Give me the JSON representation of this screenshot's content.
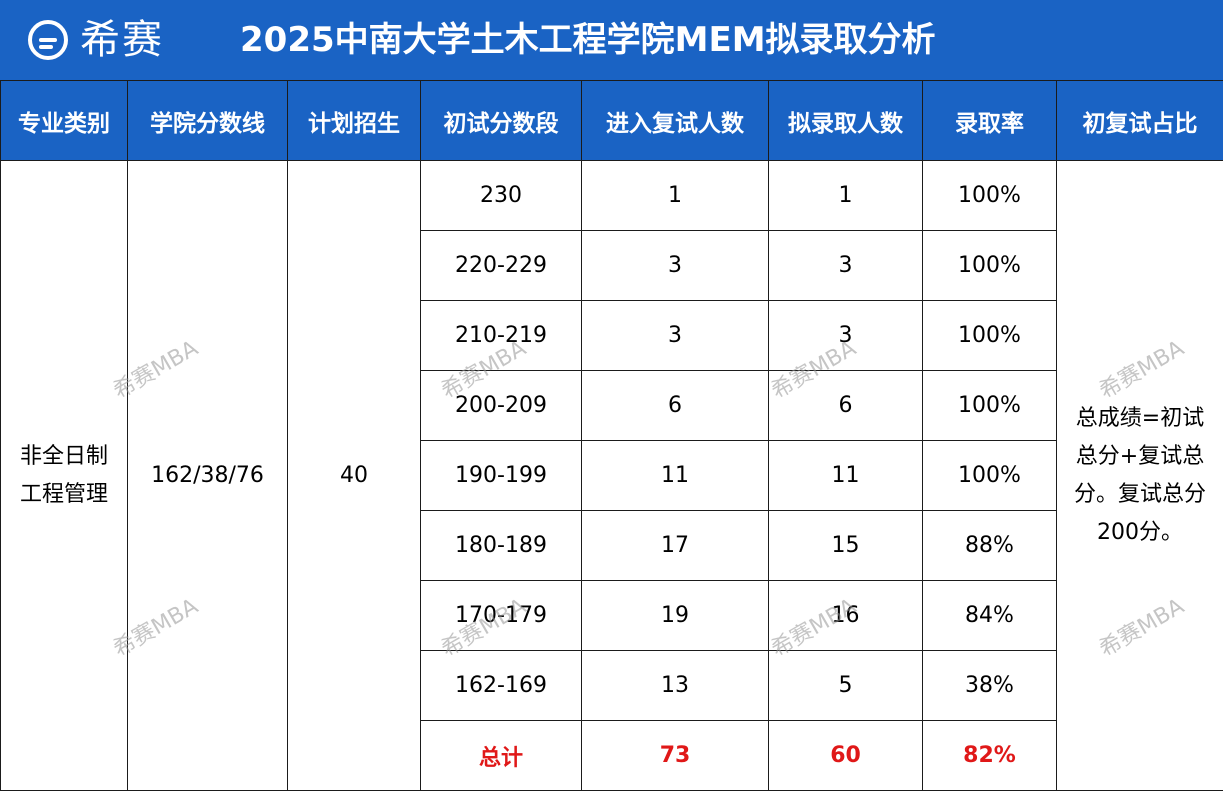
{
  "header": {
    "logo_text": "希赛",
    "title": "2025中南大学土木工程学院MEM拟录取分析"
  },
  "table": {
    "columns": [
      "专业类别",
      "学院分数线",
      "计划招生",
      "初试分数段",
      "进入复试人数",
      "拟录取人数",
      "录取率",
      "初复试占比"
    ],
    "major_line1": "非全日制",
    "major_line2": "工程管理",
    "score_line": "162/38/76",
    "plan": "40",
    "note_line1": "总成绩=初试",
    "note_line2": "总分+复试总",
    "note_line3": "分。复试总分",
    "note_line4": "200分。",
    "rows": [
      {
        "range": "230",
        "interview": "1",
        "admit": "1",
        "rate": "100%"
      },
      {
        "range": "220-229",
        "interview": "3",
        "admit": "3",
        "rate": "100%"
      },
      {
        "range": "210-219",
        "interview": "3",
        "admit": "3",
        "rate": "100%"
      },
      {
        "range": "200-209",
        "interview": "6",
        "admit": "6",
        "rate": "100%"
      },
      {
        "range": "190-199",
        "interview": "11",
        "admit": "11",
        "rate": "100%"
      },
      {
        "range": "180-189",
        "interview": "17",
        "admit": "15",
        "rate": "88%"
      },
      {
        "range": "170-179",
        "interview": "19",
        "admit": "16",
        "rate": "84%"
      },
      {
        "range": "162-169",
        "interview": "13",
        "admit": "5",
        "rate": "38%"
      }
    ],
    "total": {
      "label": "总计",
      "interview": "73",
      "admit": "60",
      "rate": "82%"
    }
  },
  "watermark": "希赛MBA"
}
